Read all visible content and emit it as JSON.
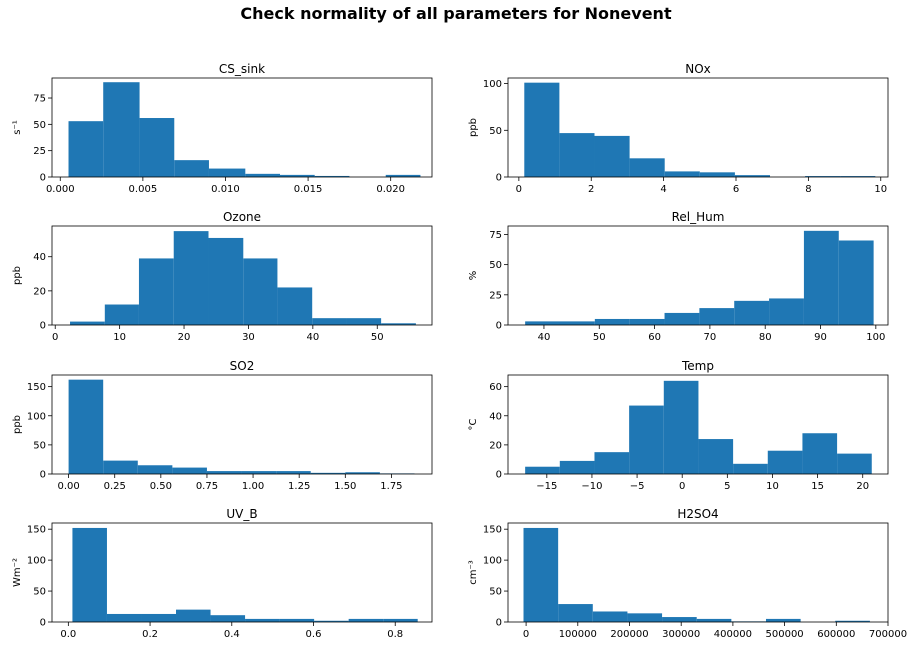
{
  "suptitle": "Check normality of all parameters for Nonevent",
  "bar_color": "#1f77b4",
  "chart_data": [
    {
      "type": "bar",
      "title": "CS_sink",
      "ylabel": "s⁻¹",
      "xlim": [
        -0.0005,
        0.0225
      ],
      "ylim": [
        0,
        94
      ],
      "xticks": [
        0.0,
        0.005,
        0.01,
        0.015,
        0.02
      ],
      "xtick_labels": [
        "0.000",
        "0.005",
        "0.010",
        "0.015",
        "0.020"
      ],
      "yticks": [
        0,
        25,
        50,
        75
      ],
      "bin_edges": [
        0.0005,
        0.0026,
        0.0048,
        0.0069,
        0.009,
        0.0112,
        0.0133,
        0.0154,
        0.0175,
        0.0197,
        0.0218
      ],
      "counts": [
        53,
        90,
        56,
        16,
        8,
        3,
        2,
        1,
        0,
        2
      ]
    },
    {
      "type": "bar",
      "title": "NOx",
      "ylabel": "ppb",
      "xlim": [
        -0.3,
        10.2
      ],
      "ylim": [
        0,
        106
      ],
      "xticks": [
        0,
        2,
        4,
        6,
        8,
        10
      ],
      "xtick_labels": [
        "0",
        "2",
        "4",
        "6",
        "8",
        "10"
      ],
      "yticks": [
        0,
        50,
        100
      ],
      "bin_edges": [
        0.15,
        1.12,
        2.09,
        3.06,
        4.03,
        5.0,
        5.97,
        6.94,
        7.91,
        8.88,
        9.85
      ],
      "counts": [
        101,
        47,
        44,
        20,
        6,
        5,
        2,
        0,
        1,
        1
      ]
    },
    {
      "type": "bar",
      "title": "Ozone",
      "ylabel": "ppb",
      "xlim": [
        -0.5,
        58.5
      ],
      "ylim": [
        0,
        58
      ],
      "xticks": [
        0,
        10,
        20,
        30,
        40,
        50
      ],
      "xtick_labels": [
        "0",
        "10",
        "20",
        "30",
        "40",
        "50"
      ],
      "yticks": [
        0,
        20,
        40
      ],
      "bin_edges": [
        2.3,
        7.7,
        13.0,
        18.4,
        23.8,
        29.2,
        34.5,
        39.9,
        45.3,
        50.6,
        56.0
      ],
      "counts": [
        2,
        12,
        39,
        55,
        51,
        39,
        22,
        4,
        4,
        1
      ]
    },
    {
      "type": "bar",
      "title": "Rel_Hum",
      "ylabel": "%",
      "xlim": [
        33.5,
        102.2
      ],
      "ylim": [
        0,
        82
      ],
      "xticks": [
        40,
        50,
        60,
        70,
        80,
        90,
        100
      ],
      "xtick_labels": [
        "40",
        "50",
        "60",
        "70",
        "80",
        "90",
        "100"
      ],
      "yticks": [
        0,
        25,
        50,
        75
      ],
      "bin_edges": [
        36.6,
        42.9,
        49.2,
        55.5,
        61.8,
        68.1,
        74.4,
        80.7,
        87.0,
        93.3,
        99.6
      ],
      "counts": [
        3,
        3,
        5,
        5,
        10,
        14,
        20,
        22,
        78,
        70
      ]
    },
    {
      "type": "bar",
      "title": "SO2",
      "ylabel": "ppb",
      "xlim": [
        -0.09,
        1.97
      ],
      "ylim": [
        0,
        170
      ],
      "xticks": [
        0.0,
        0.25,
        0.5,
        0.75,
        1.0,
        1.25,
        1.5,
        1.75
      ],
      "xtick_labels": [
        "0.00",
        "0.25",
        "0.50",
        "0.75",
        "1.00",
        "1.25",
        "1.50",
        "1.75"
      ],
      "yticks": [
        0,
        50,
        100,
        150
      ],
      "bin_edges": [
        0.0,
        0.1875,
        0.375,
        0.5625,
        0.75,
        0.9375,
        1.125,
        1.3125,
        1.5,
        1.6875,
        1.875
      ],
      "counts": [
        162,
        23,
        15,
        11,
        5,
        5,
        5,
        2,
        3,
        1
      ]
    },
    {
      "type": "bar",
      "title": "Temp",
      "ylabel": "°C",
      "xlim": [
        -19.3,
        22.8
      ],
      "ylim": [
        0,
        68
      ],
      "xticks": [
        -15,
        -10,
        -5,
        0,
        5,
        10,
        15,
        20
      ],
      "xtick_labels": [
        "−15",
        "−10",
        "−5",
        "0",
        "5",
        "10",
        "15",
        "20"
      ],
      "yticks": [
        0,
        20,
        40,
        60
      ],
      "bin_edges": [
        -17.4,
        -13.56,
        -9.72,
        -5.88,
        -2.04,
        1.8,
        5.64,
        9.48,
        13.32,
        17.16,
        21.0
      ],
      "counts": [
        5,
        9,
        15,
        47,
        64,
        24,
        7,
        16,
        28,
        14
      ]
    },
    {
      "type": "bar",
      "title": "UV_B",
      "ylabel": "Wm⁻²",
      "xlim": [
        -0.04,
        0.89
      ],
      "ylim": [
        0,
        160
      ],
      "xticks": [
        0.0,
        0.2,
        0.4,
        0.6,
        0.8
      ],
      "xtick_labels": [
        "0.0",
        "0.2",
        "0.4",
        "0.6",
        "0.8"
      ],
      "yticks": [
        0,
        50,
        100,
        150
      ],
      "bin_edges": [
        0.01,
        0.0945,
        0.179,
        0.2635,
        0.348,
        0.4325,
        0.517,
        0.6015,
        0.686,
        0.7705,
        0.855
      ],
      "counts": [
        152,
        13,
        13,
        20,
        11,
        5,
        5,
        2,
        5,
        5
      ]
    },
    {
      "type": "bar",
      "title": "H2SO4",
      "ylabel": "cm⁻³",
      "xlim": [
        -35000,
        700000
      ],
      "ylim": [
        0,
        160
      ],
      "xticks": [
        0,
        100000,
        200000,
        300000,
        400000,
        500000,
        600000,
        700000
      ],
      "xtick_labels": [
        "0",
        "100000",
        "200000",
        "300000",
        "400000",
        "500000",
        "600000",
        "700000"
      ],
      "yticks": [
        0,
        50,
        100,
        150
      ],
      "bin_edges": [
        -5000,
        62000,
        129000,
        196000,
        263000,
        330000,
        397000,
        464000,
        531000,
        598000,
        665000
      ],
      "counts": [
        152,
        29,
        17,
        14,
        8,
        5,
        1,
        5,
        0,
        2
      ]
    }
  ]
}
